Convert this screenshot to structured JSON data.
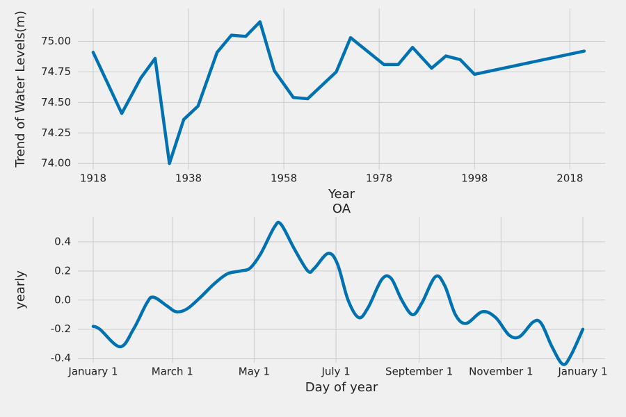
{
  "chart_data": [
    {
      "type": "line",
      "xlabel": "Year",
      "ylabel": "Trend of Water Levels(m)",
      "x": [
        1918,
        1924,
        1928,
        1931,
        1934,
        1937,
        1940,
        1944,
        1947,
        1950,
        1953,
        1956,
        1960,
        1963,
        1969,
        1972,
        1979,
        1982,
        1985,
        1989,
        1992,
        1995,
        1998,
        2021
      ],
      "series": [
        {
          "color": "#0072b2",
          "values": [
            74.91,
            74.41,
            74.7,
            74.86,
            74.0,
            74.36,
            74.47,
            74.91,
            75.05,
            75.04,
            75.16,
            74.76,
            74.54,
            74.53,
            74.75,
            75.03,
            74.81,
            74.81,
            74.95,
            74.78,
            74.88,
            74.85,
            74.73,
            74.92
          ]
        }
      ],
      "xlim": [
        1914.8,
        2025.4
      ],
      "xticks": [
        1918,
        1938,
        1958,
        1978,
        1998,
        2018
      ],
      "ylim": [
        73.95,
        75.27
      ],
      "yticks": [
        {
          "value": 74,
          "label": "74.00"
        },
        {
          "value": 74.25,
          "label": "74.25"
        },
        {
          "value": 74.5,
          "label": "74.50"
        },
        {
          "value": 74.75,
          "label": "74.75"
        },
        {
          "value": 75,
          "label": "75.00"
        }
      ],
      "grid": true
    },
    {
      "type": "line",
      "title": "OA",
      "xlabel": "Day of year",
      "ylabel": "yearly",
      "x": [
        0,
        5,
        20,
        30,
        40,
        45,
        55,
        62,
        70,
        80,
        90,
        100,
        110,
        117,
        125,
        135,
        140,
        150,
        160,
        165,
        175,
        182,
        190,
        198,
        205,
        215,
        222,
        230,
        238,
        245,
        255,
        262,
        270,
        278,
        290,
        300,
        310,
        318,
        328,
        334,
        342,
        350,
        356,
        365
      ],
      "series": [
        {
          "color": "#0072b2",
          "values": [
            -0.18,
            -0.2,
            -0.32,
            -0.2,
            -0.02,
            0.02,
            -0.04,
            -0.08,
            -0.06,
            0.02,
            0.11,
            0.18,
            0.2,
            0.22,
            0.32,
            0.5,
            0.52,
            0.35,
            0.2,
            0.22,
            0.32,
            0.25,
            0.0,
            -0.12,
            -0.05,
            0.14,
            0.15,
            0.0,
            -0.1,
            -0.02,
            0.16,
            0.1,
            -0.1,
            -0.16,
            -0.08,
            -0.12,
            -0.24,
            -0.25,
            -0.15,
            -0.16,
            -0.32,
            -0.44,
            -0.38,
            -0.2
          ]
        }
      ],
      "xlim": [
        -11.4,
        381.6
      ],
      "xticks": [
        {
          "value": 0,
          "label": "January 1"
        },
        {
          "value": 59,
          "label": "March 1"
        },
        {
          "value": 120,
          "label": "May 1"
        },
        {
          "value": 181,
          "label": "July 1"
        },
        {
          "value": 243,
          "label": "September 1"
        },
        {
          "value": 304,
          "label": "November 1"
        },
        {
          "value": 365,
          "label": "January 1"
        }
      ],
      "ylim": [
        -0.43,
        0.571
      ],
      "yticks": [
        -0.4,
        -0.2,
        {
          "value": 0,
          "label": "0.0"
        },
        0.2,
        0.4
      ],
      "grid": true,
      "smooth": true
    }
  ]
}
